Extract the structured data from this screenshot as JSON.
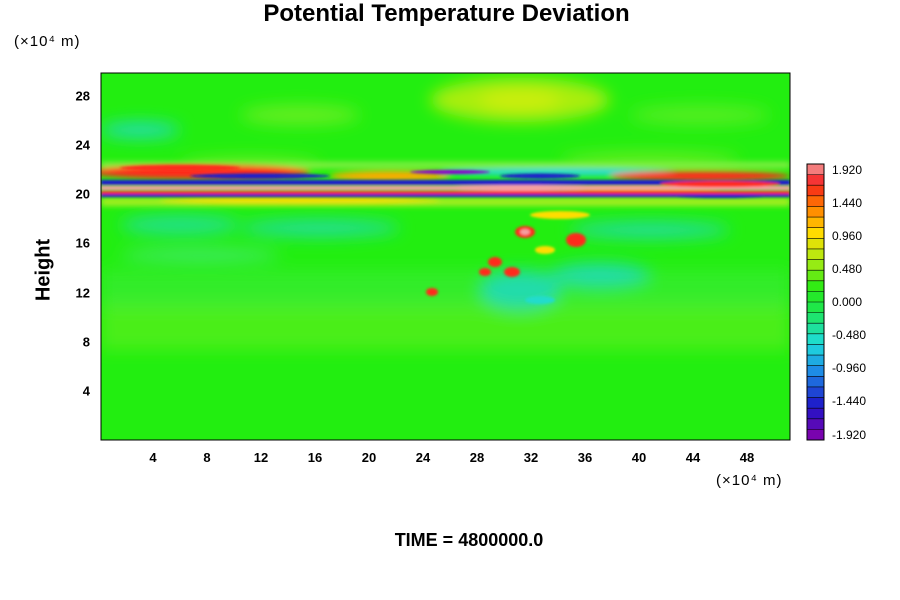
{
  "chart_data": {
    "type": "heatmap",
    "title": "Potential Temperature Deviation",
    "ylabel": "Height",
    "y_units": "(×10⁴ m)",
    "x_units": "(×10⁴ m)",
    "x_ticks": [
      "4",
      "8",
      "12",
      "16",
      "20",
      "24",
      "28",
      "32",
      "36",
      "40",
      "44",
      "48"
    ],
    "y_ticks": [
      "4",
      "8",
      "12",
      "16",
      "20",
      "24",
      "28"
    ],
    "xlim": [
      0,
      51
    ],
    "ylim": [
      0,
      29.8
    ],
    "colorbar": {
      "labels": [
        "1.920",
        "1.440",
        "0.960",
        "0.480",
        "0.000",
        "-0.480",
        "-0.960",
        "-1.440",
        "-1.920"
      ],
      "range": [
        -2.0,
        2.0
      ]
    },
    "footer": "TIME = 4800000.0"
  }
}
